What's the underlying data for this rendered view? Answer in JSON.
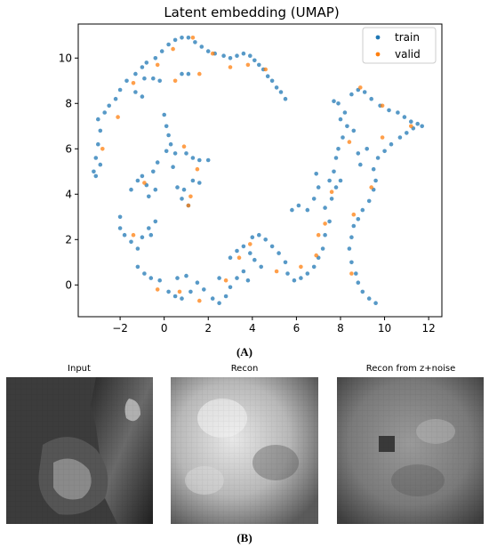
{
  "panel_a_label": "(A)",
  "panel_b_label": "(B)",
  "chart_data": {
    "type": "scatter",
    "title": "Latent embedding (UMAP)",
    "xlabel": "",
    "ylabel": "",
    "xlim": [
      -3.9,
      12.6
    ],
    "ylim": [
      -1.4,
      11.5
    ],
    "xticks": [
      -2,
      0,
      2,
      4,
      6,
      8,
      10,
      12
    ],
    "yticks": [
      0,
      2,
      4,
      6,
      8,
      10
    ],
    "grid": false,
    "legend": "top-right",
    "series": [
      {
        "name": "train",
        "color": "#1f77b4",
        "points": [
          [
            -3.2,
            5.0
          ],
          [
            -3.1,
            5.6
          ],
          [
            -3.0,
            6.2
          ],
          [
            -2.9,
            6.8
          ],
          [
            -3.0,
            7.3
          ],
          [
            -2.7,
            7.6
          ],
          [
            -2.5,
            7.9
          ],
          [
            -2.2,
            8.2
          ],
          [
            -2.0,
            8.6
          ],
          [
            -1.7,
            9.0
          ],
          [
            -1.3,
            9.3
          ],
          [
            -1.0,
            9.6
          ],
          [
            -0.8,
            9.8
          ],
          [
            -0.4,
            10.0
          ],
          [
            -0.1,
            10.3
          ],
          [
            0.2,
            10.6
          ],
          [
            0.5,
            10.8
          ],
          [
            0.8,
            10.9
          ],
          [
            1.1,
            10.9
          ],
          [
            1.4,
            10.7
          ],
          [
            1.7,
            10.5
          ],
          [
            2.0,
            10.3
          ],
          [
            2.3,
            10.2
          ],
          [
            2.7,
            10.1
          ],
          [
            3.0,
            10.0
          ],
          [
            3.3,
            10.1
          ],
          [
            3.6,
            10.2
          ],
          [
            3.9,
            10.1
          ],
          [
            4.1,
            9.9
          ],
          [
            4.3,
            9.7
          ],
          [
            4.5,
            9.5
          ],
          [
            4.7,
            9.2
          ],
          [
            4.9,
            9.0
          ],
          [
            5.1,
            8.7
          ],
          [
            5.3,
            8.5
          ],
          [
            5.5,
            8.2
          ],
          [
            -0.9,
            9.1
          ],
          [
            -0.5,
            9.1
          ],
          [
            -0.2,
            9.0
          ],
          [
            0.8,
            9.3
          ],
          [
            1.1,
            9.3
          ],
          [
            -1.3,
            8.5
          ],
          [
            -1.0,
            8.3
          ],
          [
            -3.1,
            4.8
          ],
          [
            -2.9,
            5.3
          ],
          [
            0.0,
            7.5
          ],
          [
            0.1,
            7.0
          ],
          [
            0.2,
            6.6
          ],
          [
            0.3,
            6.2
          ],
          [
            0.1,
            5.9
          ],
          [
            0.5,
            5.8
          ],
          [
            1.0,
            5.8
          ],
          [
            1.3,
            5.6
          ],
          [
            1.6,
            5.5
          ],
          [
            2.0,
            5.5
          ],
          [
            0.4,
            5.2
          ],
          [
            -0.3,
            5.4
          ],
          [
            -0.5,
            5.0
          ],
          [
            -1.0,
            4.8
          ],
          [
            -1.2,
            4.6
          ],
          [
            -1.5,
            4.2
          ],
          [
            -0.8,
            4.4
          ],
          [
            -0.4,
            4.2
          ],
          [
            -0.7,
            3.9
          ],
          [
            0.6,
            4.3
          ],
          [
            0.9,
            4.2
          ],
          [
            1.3,
            4.6
          ],
          [
            1.6,
            4.5
          ],
          [
            0.8,
            3.8
          ],
          [
            1.1,
            3.5
          ],
          [
            -2.0,
            3.0
          ],
          [
            -2.0,
            2.5
          ],
          [
            -1.8,
            2.2
          ],
          [
            -1.5,
            1.9
          ],
          [
            -1.2,
            1.6
          ],
          [
            -1.0,
            2.1
          ],
          [
            -0.7,
            2.5
          ],
          [
            -0.4,
            2.8
          ],
          [
            -0.6,
            2.2
          ],
          [
            -1.2,
            0.8
          ],
          [
            -0.9,
            0.5
          ],
          [
            -0.6,
            0.3
          ],
          [
            -0.2,
            0.2
          ],
          [
            0.2,
            -0.3
          ],
          [
            0.5,
            -0.5
          ],
          [
            0.8,
            -0.6
          ],
          [
            1.2,
            -0.3
          ],
          [
            1.5,
            0.1
          ],
          [
            0.6,
            0.3
          ],
          [
            1.0,
            0.4
          ],
          [
            1.8,
            -0.2
          ],
          [
            2.2,
            -0.6
          ],
          [
            2.5,
            -0.8
          ],
          [
            2.8,
            -0.5
          ],
          [
            3.0,
            -0.1
          ],
          [
            3.3,
            0.3
          ],
          [
            3.6,
            0.6
          ],
          [
            2.5,
            0.3
          ],
          [
            3.0,
            1.2
          ],
          [
            3.3,
            1.5
          ],
          [
            3.6,
            1.7
          ],
          [
            3.9,
            1.4
          ],
          [
            4.1,
            1.1
          ],
          [
            4.4,
            0.8
          ],
          [
            3.8,
            0.2
          ],
          [
            4.0,
            2.1
          ],
          [
            4.3,
            2.2
          ],
          [
            4.6,
            2.0
          ],
          [
            4.9,
            1.7
          ],
          [
            5.2,
            1.4
          ],
          [
            5.5,
            1.0
          ],
          [
            5.6,
            0.5
          ],
          [
            5.9,
            0.2
          ],
          [
            6.2,
            0.3
          ],
          [
            6.5,
            0.5
          ],
          [
            6.8,
            0.8
          ],
          [
            7.0,
            1.2
          ],
          [
            7.2,
            1.6
          ],
          [
            7.3,
            2.2
          ],
          [
            7.5,
            2.8
          ],
          [
            7.3,
            3.4
          ],
          [
            7.6,
            3.8
          ],
          [
            7.8,
            4.3
          ],
          [
            8.0,
            4.6
          ],
          [
            7.5,
            4.6
          ],
          [
            7.7,
            5.0
          ],
          [
            7.8,
            5.6
          ],
          [
            7.9,
            6.0
          ],
          [
            8.1,
            6.5
          ],
          [
            8.3,
            7.0
          ],
          [
            8.6,
            6.8
          ],
          [
            8.0,
            7.3
          ],
          [
            8.2,
            7.6
          ],
          [
            7.9,
            8.0
          ],
          [
            7.7,
            8.1
          ],
          [
            8.5,
            8.4
          ],
          [
            8.8,
            8.6
          ],
          [
            9.1,
            8.5
          ],
          [
            9.4,
            8.2
          ],
          [
            9.8,
            7.9
          ],
          [
            10.2,
            7.7
          ],
          [
            10.6,
            7.6
          ],
          [
            10.9,
            7.4
          ],
          [
            11.2,
            7.2
          ],
          [
            11.5,
            7.1
          ],
          [
            11.7,
            7.0
          ],
          [
            11.3,
            6.9
          ],
          [
            11.0,
            6.7
          ],
          [
            10.7,
            6.5
          ],
          [
            10.3,
            6.2
          ],
          [
            10.0,
            5.9
          ],
          [
            9.7,
            5.6
          ],
          [
            9.5,
            5.1
          ],
          [
            9.6,
            4.6
          ],
          [
            9.5,
            4.2
          ],
          [
            9.3,
            3.7
          ],
          [
            9.0,
            3.3
          ],
          [
            8.8,
            2.9
          ],
          [
            8.6,
            2.6
          ],
          [
            8.5,
            2.1
          ],
          [
            8.4,
            1.6
          ],
          [
            8.5,
            1.0
          ],
          [
            8.7,
            0.5
          ],
          [
            8.8,
            0.1
          ],
          [
            9.0,
            -0.3
          ],
          [
            9.3,
            -0.6
          ],
          [
            9.6,
            -0.8
          ],
          [
            6.5,
            3.3
          ],
          [
            6.1,
            3.5
          ],
          [
            5.8,
            3.3
          ],
          [
            6.8,
            3.8
          ],
          [
            7.0,
            4.3
          ],
          [
            6.9,
            4.9
          ],
          [
            9.2,
            6.0
          ],
          [
            8.8,
            5.8
          ],
          [
            8.9,
            5.3
          ]
        ]
      },
      {
        "name": "valid",
        "color": "#ff7f0e",
        "points": [
          [
            -2.8,
            6.0
          ],
          [
            -2.1,
            7.4
          ],
          [
            -1.4,
            8.9
          ],
          [
            -0.3,
            9.7
          ],
          [
            0.4,
            10.4
          ],
          [
            1.3,
            10.9
          ],
          [
            2.2,
            10.2
          ],
          [
            3.0,
            9.6
          ],
          [
            3.8,
            9.7
          ],
          [
            4.6,
            9.5
          ],
          [
            0.5,
            9.0
          ],
          [
            1.6,
            9.3
          ],
          [
            0.9,
            6.1
          ],
          [
            1.5,
            5.1
          ],
          [
            -0.9,
            4.5
          ],
          [
            1.2,
            3.9
          ],
          [
            1.1,
            3.5
          ],
          [
            -1.4,
            2.2
          ],
          [
            -0.3,
            -0.2
          ],
          [
            0.7,
            -0.3
          ],
          [
            1.6,
            -0.7
          ],
          [
            2.8,
            0.2
          ],
          [
            3.4,
            1.2
          ],
          [
            3.9,
            1.8
          ],
          [
            5.1,
            0.6
          ],
          [
            6.2,
            0.8
          ],
          [
            6.9,
            1.3
          ],
          [
            7.0,
            2.2
          ],
          [
            7.3,
            2.7
          ],
          [
            7.6,
            4.1
          ],
          [
            8.4,
            6.3
          ],
          [
            8.9,
            8.7
          ],
          [
            9.9,
            7.9
          ],
          [
            11.2,
            7.0
          ],
          [
            9.9,
            6.5
          ],
          [
            9.4,
            4.3
          ],
          [
            8.6,
            3.1
          ],
          [
            8.5,
            0.5
          ]
        ]
      }
    ]
  },
  "panel_b": {
    "images": [
      {
        "title": "Input"
      },
      {
        "title": "Recon"
      },
      {
        "title": "Recon from z+noise"
      }
    ]
  }
}
